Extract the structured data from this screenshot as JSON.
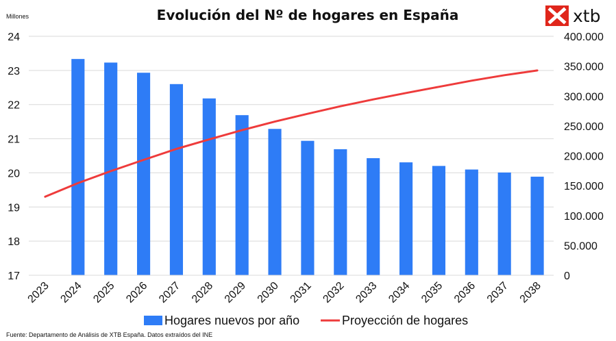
{
  "brand": {
    "name": "xtb",
    "color": "#e0261b"
  },
  "footer": {
    "source": "Fuente: Departamento de Análisis de XTB España. Datos extraídos del INE"
  },
  "colors": {
    "bars": "#2e7cf6",
    "line": "#ee3b3b",
    "grid": "#d9d9d9"
  },
  "chart_data": {
    "type": "bar",
    "title": "Evolución del Nº de hogares en España",
    "y_left_unit": "Millones",
    "categories": [
      "2023",
      "2024",
      "2025",
      "2026",
      "2027",
      "2028",
      "2029",
      "2030",
      "2031",
      "2032",
      "2033",
      "2034",
      "2035",
      "2036",
      "2037",
      "2038"
    ],
    "y_left": {
      "min": 17,
      "max": 24,
      "ticks": [
        "17",
        "18",
        "19",
        "20",
        "21",
        "22",
        "23",
        "24"
      ]
    },
    "y_right": {
      "min": 0,
      "max": 400000,
      "ticks": [
        "0",
        "50.000",
        "100.000",
        "150.000",
        "200.000",
        "250.000",
        "300.000",
        "350.000",
        "400.000"
      ]
    },
    "grid": true,
    "legend_position": "bottom",
    "series": [
      {
        "name": "Hogares nuevos por año",
        "type": "bar",
        "axis": "right",
        "values": [
          null,
          362000,
          356000,
          339000,
          320000,
          296000,
          268000,
          245000,
          225000,
          211000,
          196000,
          189000,
          183000,
          177000,
          172000,
          165000
        ]
      },
      {
        "name": "Proyección de hogares",
        "type": "line",
        "axis": "left",
        "values": [
          19.3,
          19.7,
          20.05,
          20.38,
          20.7,
          20.98,
          21.25,
          21.5,
          21.73,
          21.95,
          22.15,
          22.34,
          22.52,
          22.7,
          22.86,
          23.0
        ]
      }
    ]
  }
}
